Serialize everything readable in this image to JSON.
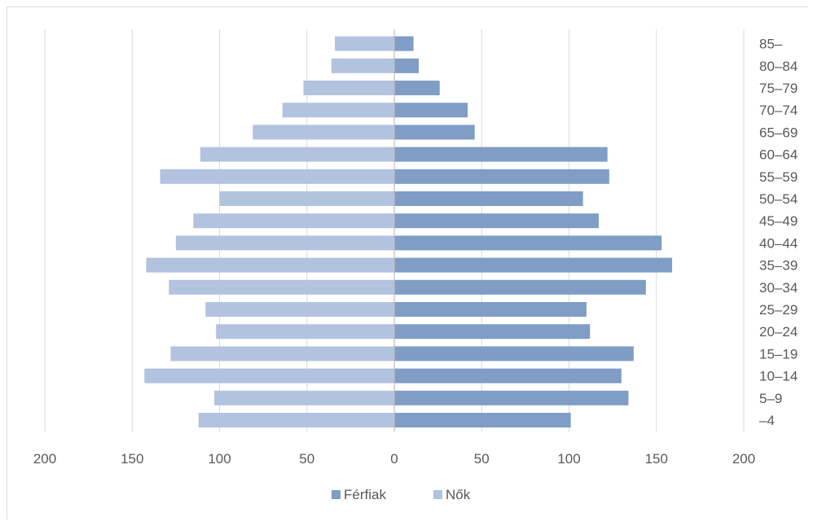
{
  "chart_data": {
    "type": "bar",
    "orientation": "horizontal",
    "title": "",
    "xlabel": "",
    "ylabel": "",
    "categories": [
      "85–",
      "80–84",
      "75–79",
      "70–74",
      "65–69",
      "60–64",
      "55–59",
      "50–54",
      "45–49",
      "40–44",
      "35–39",
      "30–34",
      "25–29",
      "20–24",
      "15–19",
      "10–14",
      "5–9",
      "–4"
    ],
    "series": [
      {
        "name": "Férfiak",
        "color": "#7f9dc5",
        "values": [
          11,
          14,
          26,
          42,
          46,
          122,
          123,
          108,
          117,
          153,
          159,
          144,
          110,
          112,
          137,
          130,
          134,
          101
        ]
      },
      {
        "name": "Nők",
        "color": "#b2c3df",
        "values": [
          34,
          36,
          52,
          64,
          81,
          111,
          134,
          100,
          115,
          125,
          142,
          129,
          108,
          102,
          128,
          143,
          103,
          112
        ]
      }
    ],
    "xlim": [
      -200,
      200
    ],
    "x_ticks": [
      -200,
      -150,
      -100,
      -50,
      0,
      50,
      100,
      150,
      200
    ],
    "x_tick_labels": [
      "200",
      "150",
      "100",
      "50",
      "0",
      "50",
      "100",
      "150",
      "200"
    ],
    "grid": "vertical",
    "legend": "bottom"
  }
}
